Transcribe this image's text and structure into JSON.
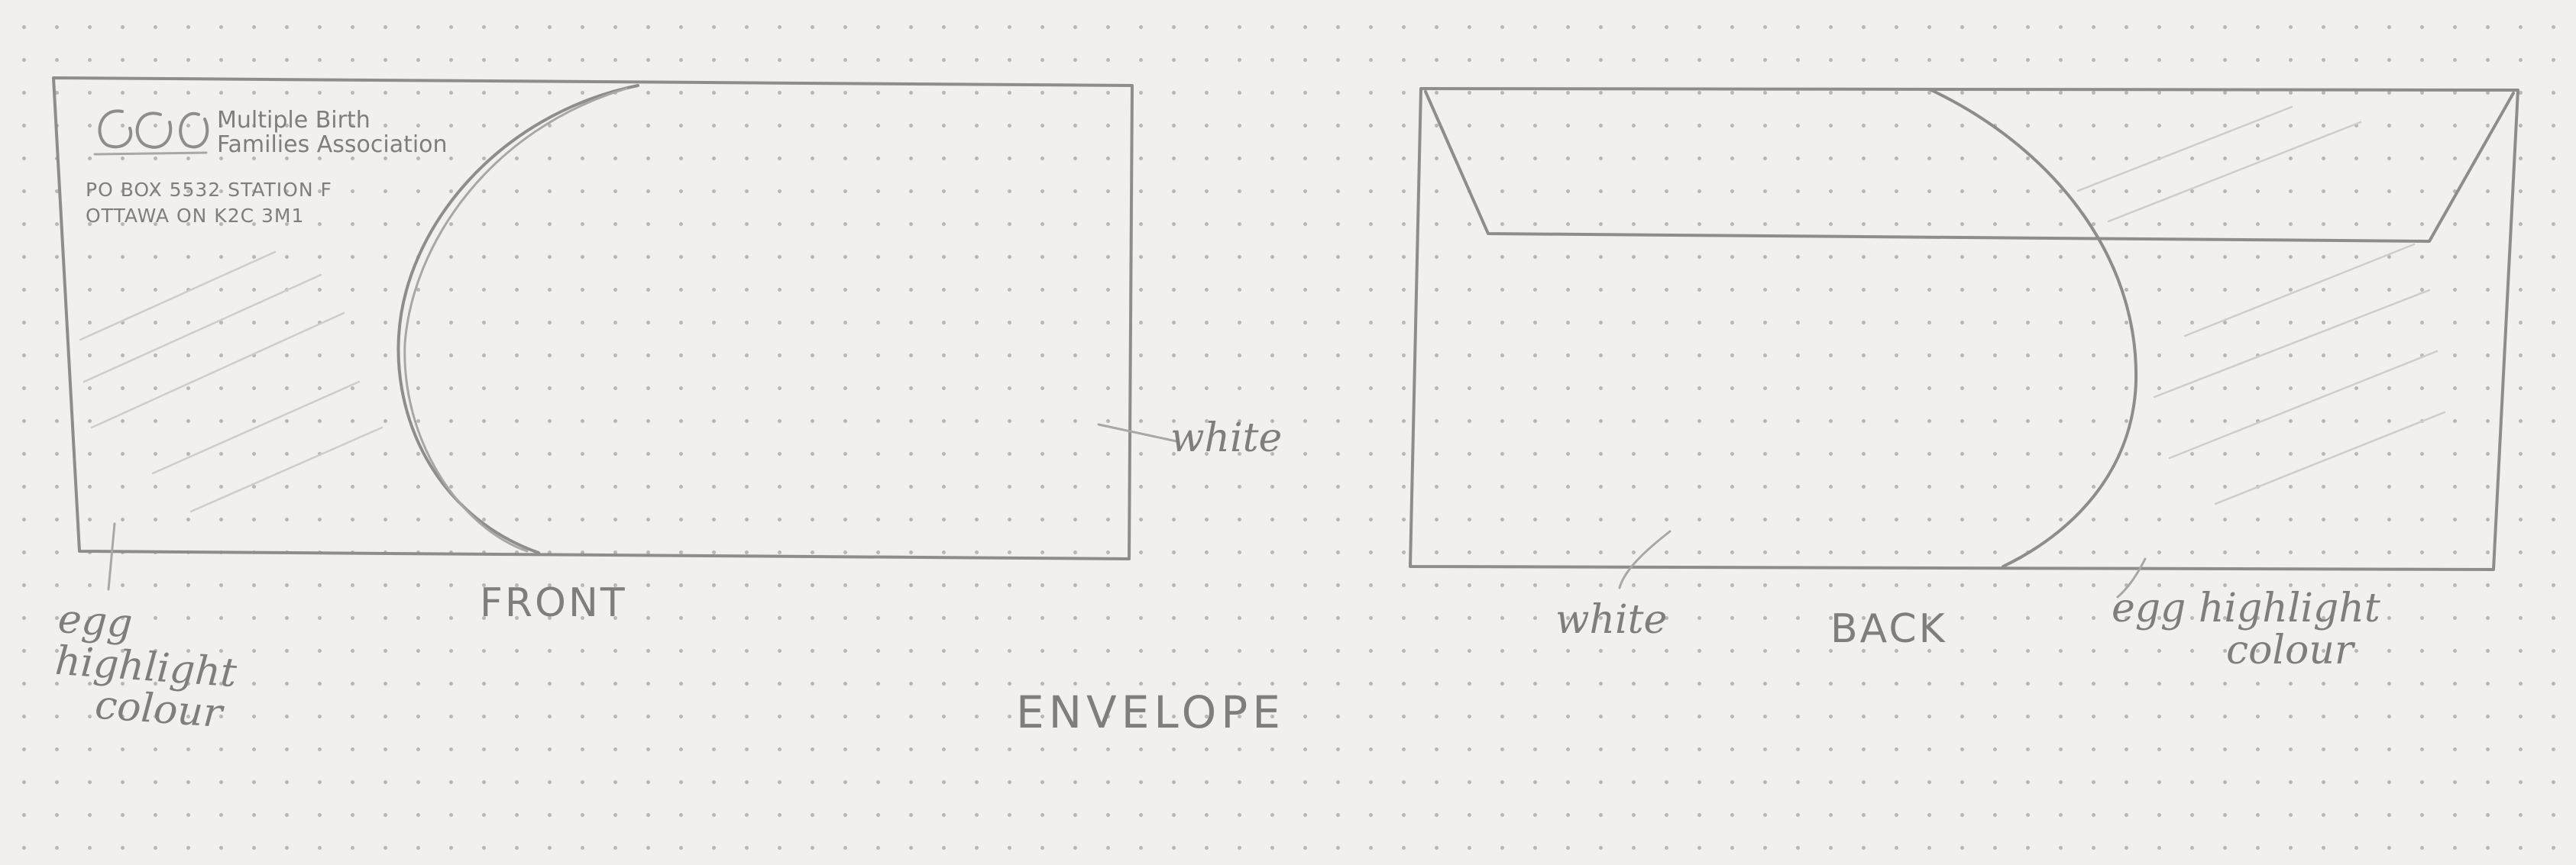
{
  "sketch": {
    "title": "ENVELOPE",
    "front": {
      "label": "FRONT",
      "logo": {
        "org_name_line1": "Multiple Birth",
        "org_name_line2": "Families Association"
      },
      "address": {
        "line1": "PO BOX 5532  STATION F",
        "line2": "OTTAWA ON K2C 3M1"
      },
      "annotations": {
        "white": "white",
        "highlight_line1": "egg",
        "highlight_line2": "highlight",
        "highlight_line3": "colour"
      }
    },
    "back": {
      "label": "BACK",
      "annotations": {
        "white": "white",
        "highlight_line1": "egg highlight",
        "highlight_line2": "colour"
      }
    }
  },
  "colors": {
    "paper": "#f1f0ee",
    "pencil": "#8e8d8a",
    "dot_grid": "#b9b7b3"
  }
}
